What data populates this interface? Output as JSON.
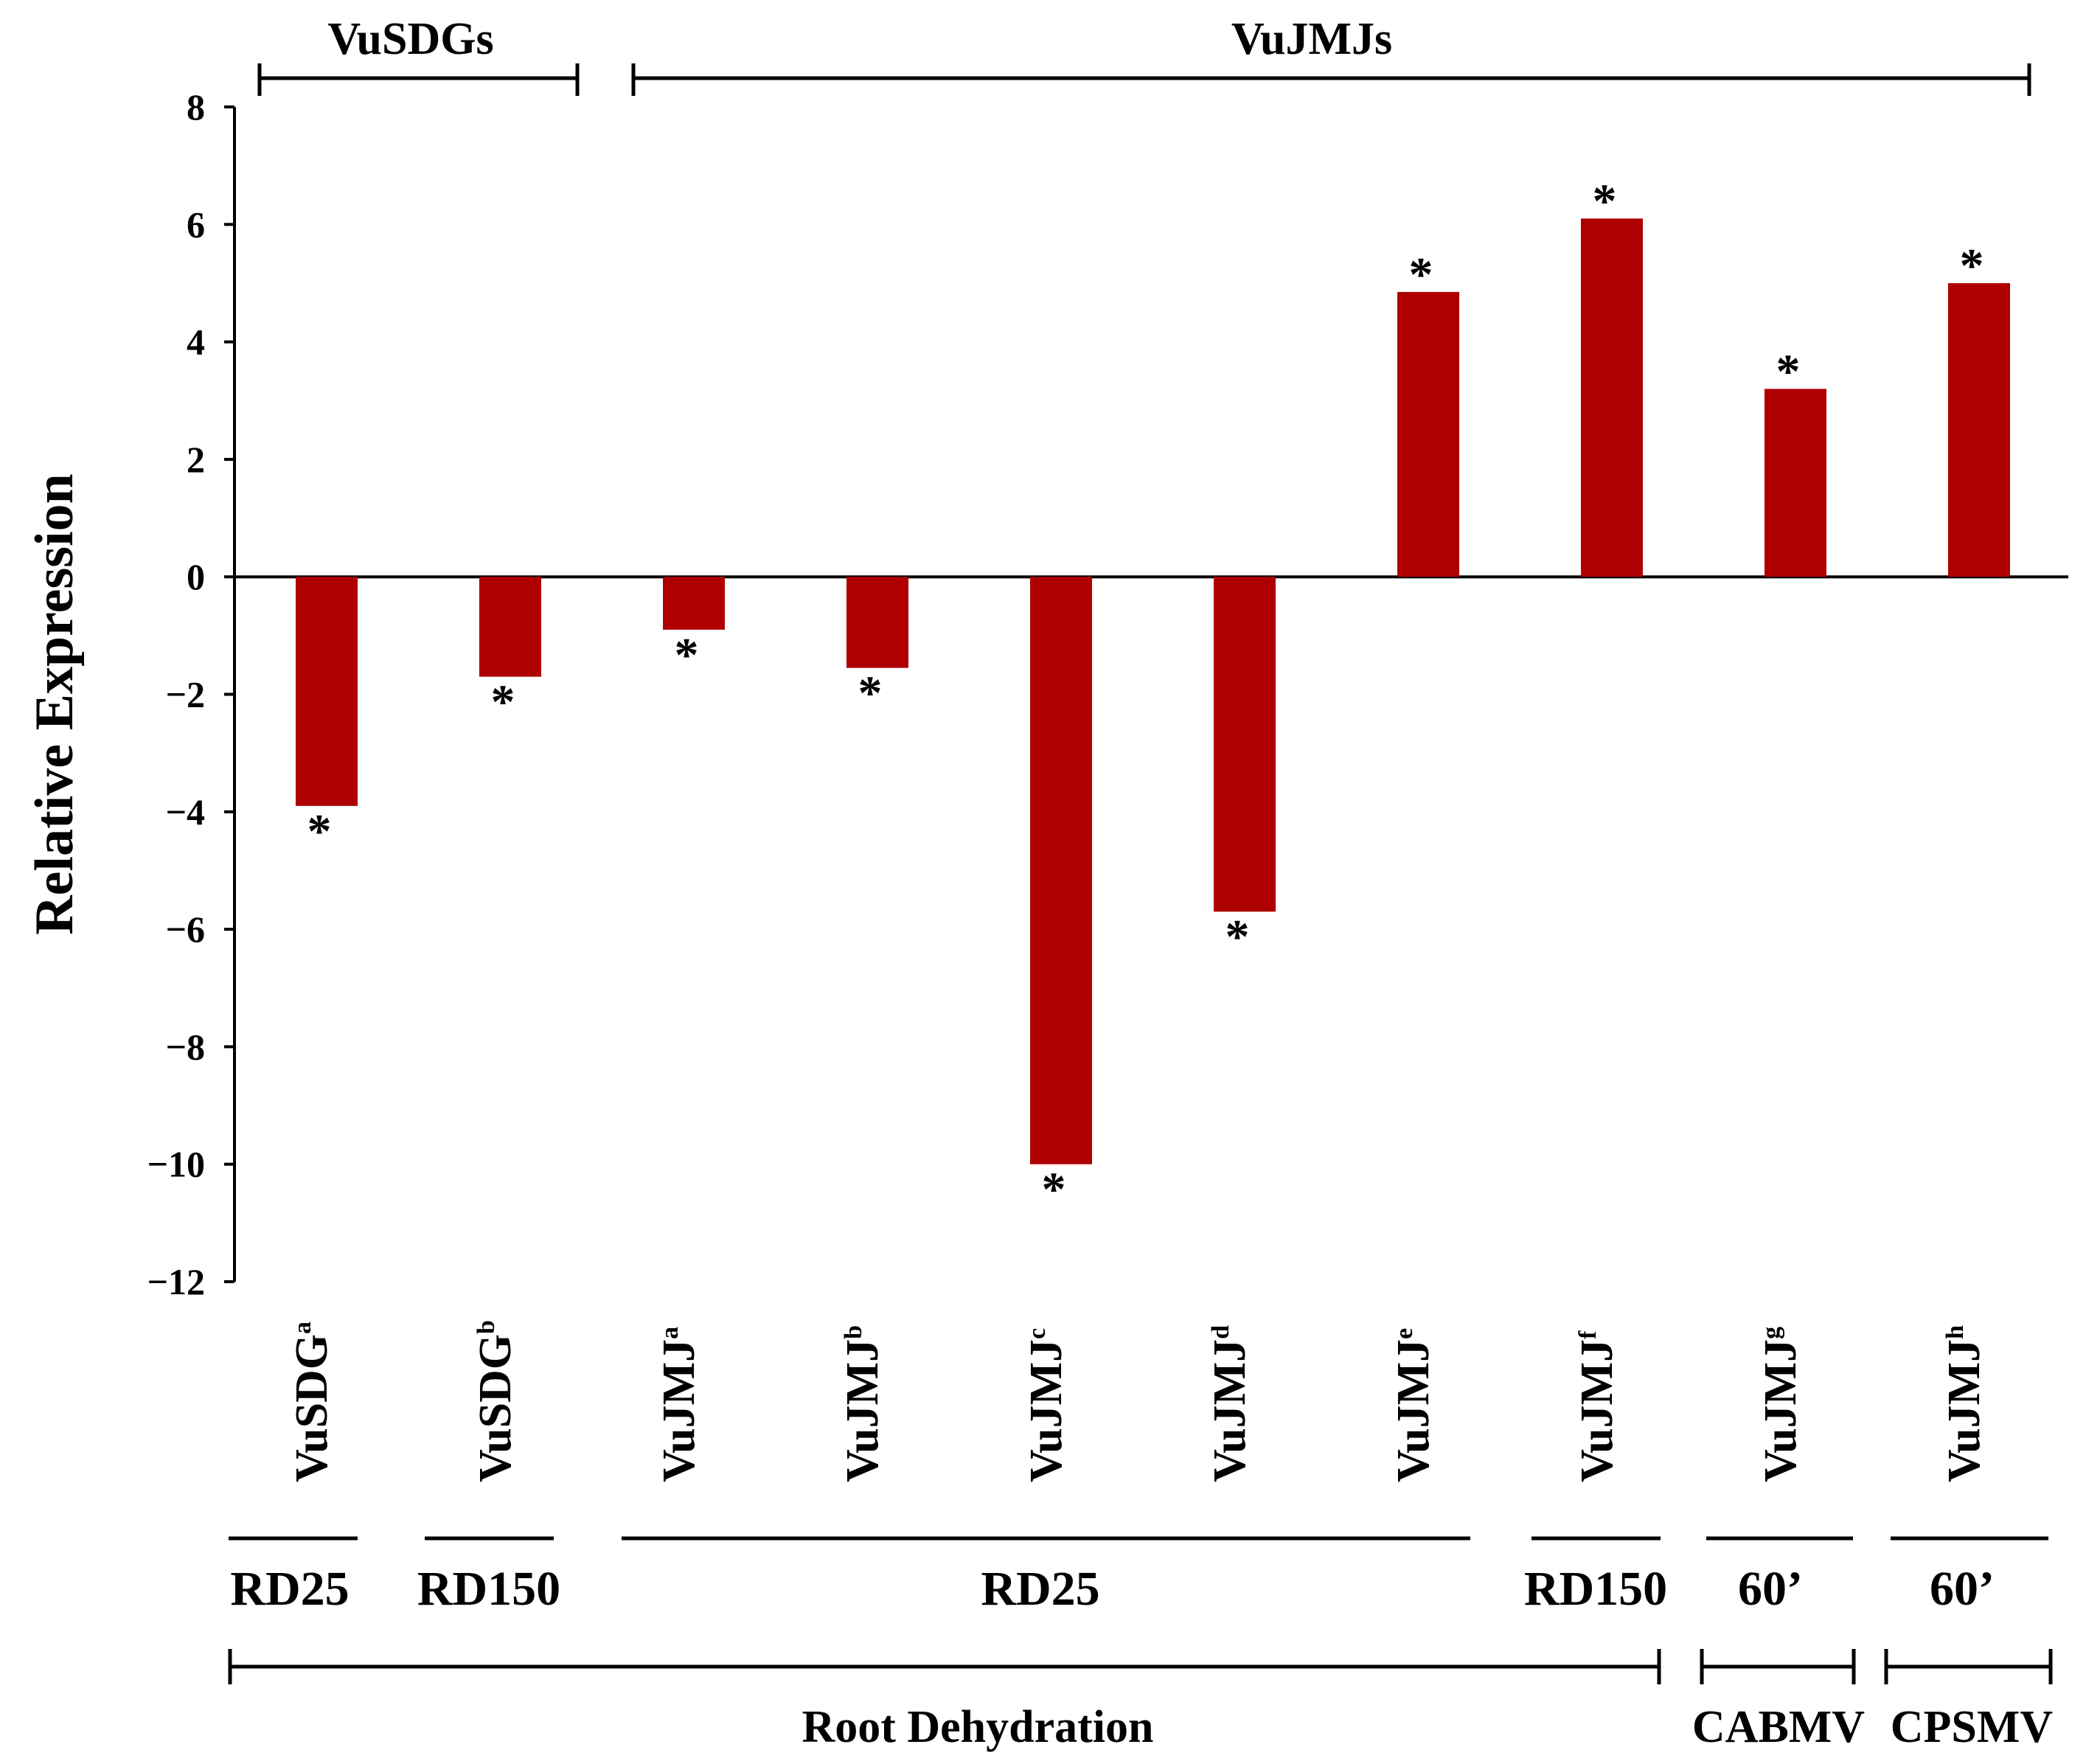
{
  "colors": {
    "bar": "#AE0000",
    "axis": "#000000",
    "background": "#FFFFFF"
  },
  "chart_data": {
    "type": "bar",
    "ylabel": "Relative Expression",
    "ylim": [
      -12,
      8
    ],
    "yticks": [
      8,
      6,
      4,
      2,
      0,
      -2,
      -4,
      -6,
      -8,
      -10,
      -12
    ],
    "ytick_labels": [
      "8",
      "6",
      "4",
      "2",
      "0",
      "−2",
      "−4",
      "−6",
      "−8",
      "−10",
      "−12"
    ],
    "categories": [
      {
        "name": "VuSDG",
        "sup": "a"
      },
      {
        "name": "VuSDG",
        "sup": "b"
      },
      {
        "name": "VuJMJ",
        "sup": "a"
      },
      {
        "name": "VuJMJ",
        "sup": "b"
      },
      {
        "name": "VuJMJ",
        "sup": "c"
      },
      {
        "name": "VuJMJ",
        "sup": "d"
      },
      {
        "name": "VuJMJ",
        "sup": "e"
      },
      {
        "name": "VuJMJ",
        "sup": "f"
      },
      {
        "name": "VuJMJ",
        "sup": "g"
      },
      {
        "name": "VuJMJ",
        "sup": "h"
      }
    ],
    "values": [
      -3.9,
      -1.7,
      -0.9,
      -1.55,
      -10.0,
      -5.7,
      4.85,
      6.1,
      3.2,
      5.0
    ],
    "significance": [
      "*",
      "*",
      "*",
      "*",
      "*",
      "*",
      "*",
      "*",
      "*",
      "*"
    ],
    "top_groups": [
      {
        "label": "VuSDGs",
        "from": 0,
        "to": 1
      },
      {
        "label": "VuJMJs",
        "from": 2,
        "to": 9
      }
    ],
    "conditions": [
      {
        "label": "RD25",
        "from": 0,
        "to": 0
      },
      {
        "label": "RD150",
        "from": 1,
        "to": 1
      },
      {
        "label": "RD25",
        "from": 2,
        "to": 6
      },
      {
        "label": "RD150",
        "from": 7,
        "to": 7
      },
      {
        "label": "60’",
        "from": 8,
        "to": 8
      },
      {
        "label": "60’",
        "from": 9,
        "to": 9
      }
    ],
    "treatments": [
      {
        "label": "Root Dehydration",
        "from": 0,
        "to": 7
      },
      {
        "label": "CABMV",
        "from": 8,
        "to": 8
      },
      {
        "label": "CPSMV",
        "from": 9,
        "to": 9
      }
    ]
  }
}
